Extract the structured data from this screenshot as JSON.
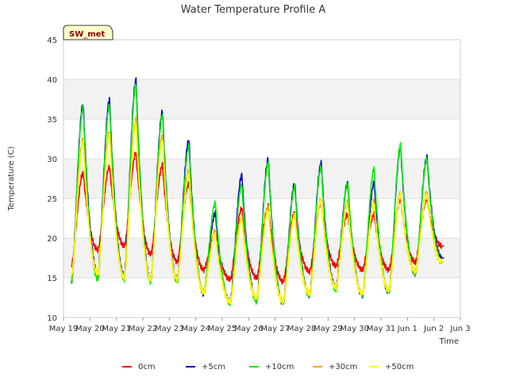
{
  "chart_data": {
    "type": "line",
    "title": "Water Temperature Profile A",
    "xlabel": "Time",
    "ylabel": "Temperature (C)",
    "ylim": [
      10,
      45
    ],
    "yticks": [
      10,
      15,
      20,
      25,
      30,
      35,
      40,
      45
    ],
    "xlim": [
      "May 19",
      "Jun 3"
    ],
    "xtick_labels": [
      "May 19",
      "May 20",
      "May 21",
      "May 22",
      "May 23",
      "May 24",
      "May 25",
      "May 26",
      "May 27",
      "May 28",
      "May 29",
      "May 30",
      "May 31",
      "Jun 1",
      "Jun 2",
      "Jun 3"
    ],
    "grid": true,
    "shaded_bands": [
      [
        15,
        20
      ],
      [
        25,
        30
      ],
      [
        35,
        40
      ]
    ],
    "legend_position": "bottom-center",
    "station_badge": "SW_met",
    "x_days_shown": [
      "May 19.3",
      "May 20.3",
      "May 21.3",
      "May 22.3",
      "May 23.3",
      "May 24.3",
      "May 25.3",
      "May 26.3",
      "May 27.3",
      "May 28.3",
      "May 29.3",
      "May 30.3",
      "May 31.3",
      "Jun 1.3",
      "Jun 2.3"
    ],
    "series": [
      {
        "name": "0cm",
        "color": "#ff0000",
        "daily_min": [
          16.5,
          18.5,
          19.0,
          18.0,
          17.0,
          16.0,
          14.8,
          15.0,
          14.5,
          15.8,
          16.5,
          16.0,
          16.0,
          17.0,
          19.0
        ],
        "daily_max": [
          28.3,
          29.0,
          30.8,
          29.2,
          27.0,
          20.5,
          23.8,
          24.0,
          23.2,
          24.5,
          23.0,
          23.0,
          25.0,
          25.0
        ]
      },
      {
        "name": "+5cm",
        "color": "#0000cc",
        "daily_min": [
          14.5,
          15.5,
          15.2,
          14.8,
          14.8,
          13.0,
          12.0,
          12.2,
          11.8,
          12.8,
          13.8,
          12.8,
          13.2,
          15.5,
          17.5
        ],
        "daily_max": [
          37.0,
          37.5,
          40.0,
          36.0,
          32.5,
          23.2,
          28.0,
          30.0,
          27.0,
          29.5,
          27.0,
          27.0,
          31.5,
          30.2
        ]
      },
      {
        "name": "+10cm",
        "color": "#00ee00",
        "daily_min": [
          14.3,
          14.8,
          14.8,
          14.5,
          14.5,
          13.2,
          11.8,
          12.0,
          11.8,
          12.8,
          13.5,
          12.8,
          13.2,
          15.5,
          17.0
        ],
        "daily_max": [
          36.5,
          36.8,
          39.5,
          35.5,
          31.5,
          24.5,
          26.8,
          29.5,
          26.5,
          29.0,
          27.0,
          28.8,
          31.8,
          30.0
        ]
      },
      {
        "name": "+30cm",
        "color": "#ffa500",
        "daily_min": [
          15.0,
          15.5,
          15.0,
          14.8,
          14.8,
          13.2,
          12.0,
          12.5,
          12.0,
          13.0,
          13.8,
          13.0,
          13.5,
          15.8,
          17.0
        ],
        "daily_max": [
          32.5,
          33.5,
          35.0,
          33.0,
          28.5,
          21.0,
          22.8,
          24.0,
          23.0,
          25.0,
          24.5,
          24.8,
          25.8,
          25.8
        ]
      },
      {
        "name": "+50cm",
        "color": "#ffff00",
        "daily_min": [
          15.2,
          15.5,
          15.0,
          14.8,
          14.8,
          13.2,
          12.0,
          12.5,
          12.0,
          13.0,
          13.8,
          13.0,
          13.5,
          15.8,
          17.0
        ],
        "daily_max": [
          32.0,
          33.0,
          34.5,
          32.5,
          28.0,
          20.5,
          22.5,
          23.5,
          22.8,
          24.8,
          24.2,
          24.5,
          25.5,
          25.5
        ]
      }
    ]
  }
}
